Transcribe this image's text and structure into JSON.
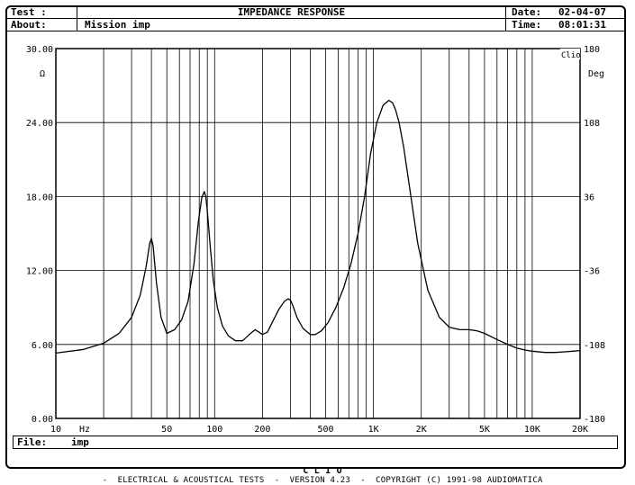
{
  "header": {
    "test_label": "Test :",
    "title": "IMPEDANCE RESPONSE",
    "about_label": "About:",
    "about_value": "Mission imp",
    "date_label": "Date:",
    "date_value": "02-04-07",
    "time_label": "Time:",
    "time_value": "08:01:31"
  },
  "file": {
    "label": "File:",
    "value": "imp"
  },
  "footer": {
    "brand": "C L I O",
    "text": "-  ELECTRICAL & ACOUSTICAL TESTS  -  VERSION 4.23  -  COPYRIGHT (C) 1991-98 AUDIOMATICA"
  },
  "chart_data": {
    "type": "line",
    "title": "IMPEDANCE RESPONSE",
    "logo_text": "Clio",
    "x_scale": "log",
    "xlim": [
      10,
      20000
    ],
    "xlabel": "Hz",
    "x_tick_labels": [
      {
        "value": 10,
        "label": "10"
      },
      {
        "value": 50,
        "label": "50"
      },
      {
        "value": 100,
        "label": "100"
      },
      {
        "value": 200,
        "label": "200"
      },
      {
        "value": 500,
        "label": "500"
      },
      {
        "value": 1000,
        "label": "1K"
      },
      {
        "value": 2000,
        "label": "2K"
      },
      {
        "value": 5000,
        "label": "5K"
      },
      {
        "value": 10000,
        "label": "10K"
      },
      {
        "value": 20000,
        "label": "20K"
      }
    ],
    "ylabel_left": "Ω",
    "ylim_left": [
      0,
      30
    ],
    "y_ticks_left": [
      "0.00",
      "6.00",
      "12.00",
      "18.00",
      "24.00",
      "30.00"
    ],
    "ylabel_right": "Deg",
    "ylim_right": [
      -180,
      180
    ],
    "y_ticks_right": [
      "-180",
      "-108",
      "-36",
      "36",
      "108",
      "180"
    ],
    "grid": true,
    "series": [
      {
        "color": "#000000",
        "x": [
          10,
          15,
          20,
          25,
          30,
          34,
          37,
          39,
          40,
          41,
          43,
          46,
          50,
          56,
          62,
          68,
          74,
          79,
          83,
          86,
          88,
          90,
          94,
          98,
          104,
          112,
          122,
          135,
          150,
          165,
          180,
          190,
          200,
          215,
          235,
          255,
          275,
          290,
          300,
          310,
          330,
          360,
          400,
          430,
          470,
          520,
          580,
          650,
          720,
          800,
          880,
          960,
          1050,
          1150,
          1250,
          1320,
          1380,
          1450,
          1550,
          1700,
          1900,
          2200,
          2600,
          3000,
          3500,
          4000,
          4500,
          5000,
          6000,
          7000,
          8000,
          9000,
          10000,
          12000,
          14000,
          16000,
          18000,
          20000
        ],
        "y": [
          5.3,
          5.6,
          6.1,
          6.9,
          8.2,
          10.0,
          12.3,
          14.2,
          14.6,
          14.0,
          11.0,
          8.2,
          6.9,
          7.2,
          8.0,
          9.5,
          12.5,
          16.0,
          17.9,
          18.4,
          18.0,
          16.8,
          13.8,
          11.2,
          9.0,
          7.5,
          6.7,
          6.3,
          6.3,
          6.8,
          7.2,
          7.0,
          6.8,
          7.0,
          8.0,
          8.9,
          9.5,
          9.7,
          9.6,
          9.2,
          8.2,
          7.3,
          6.8,
          6.8,
          7.1,
          7.8,
          9.0,
          10.6,
          12.5,
          15.0,
          18.0,
          21.5,
          24.0,
          25.4,
          25.8,
          25.6,
          25.0,
          24.0,
          22.0,
          18.5,
          14.2,
          10.4,
          8.2,
          7.4,
          7.2,
          7.2,
          7.1,
          6.9,
          6.4,
          6.0,
          5.7,
          5.55,
          5.45,
          5.35,
          5.35,
          5.4,
          5.45,
          5.5
        ]
      }
    ]
  }
}
